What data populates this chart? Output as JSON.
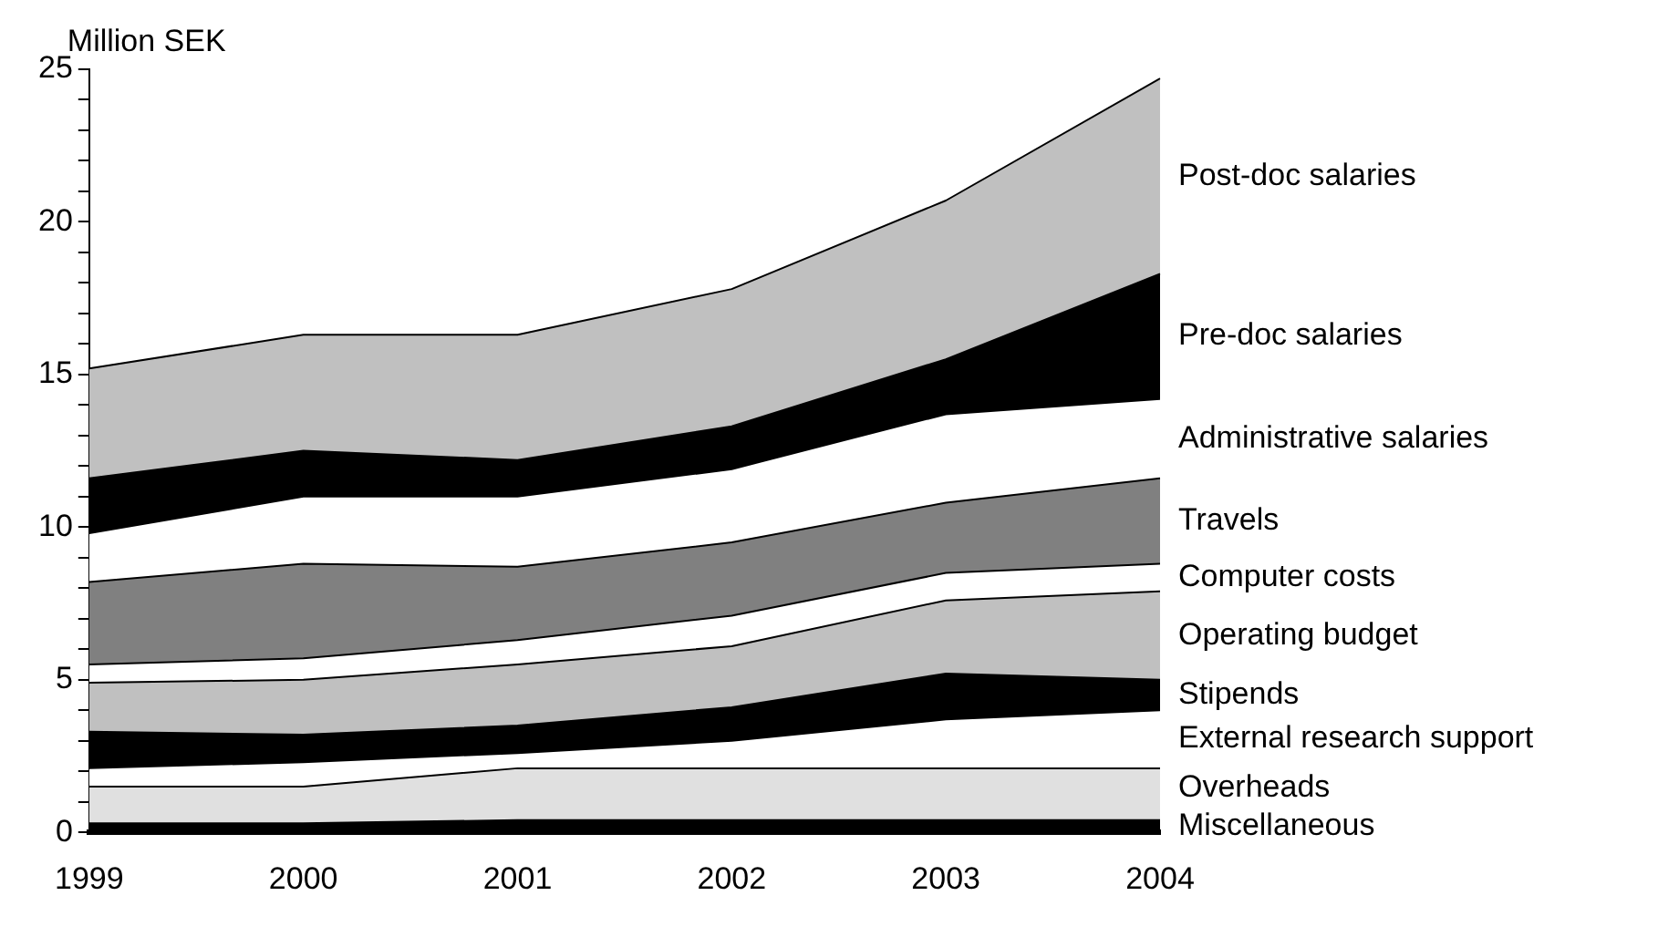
{
  "chart_data": {
    "type": "area",
    "ylabel": "Million SEK",
    "stacked": true,
    "categories": [
      "1999",
      "2000",
      "2001",
      "2002",
      "2003",
      "2004"
    ],
    "ylim": [
      0,
      25
    ],
    "yticks": [
      0,
      {
        "value": 1,
        "label": null
      },
      {
        "value": 2,
        "label": null
      },
      {
        "value": 3,
        "label": null
      },
      {
        "value": 4,
        "label": null
      },
      5,
      {
        "value": 6,
        "label": null
      },
      {
        "value": 7,
        "label": null
      },
      {
        "value": 8,
        "label": null
      },
      {
        "value": 9,
        "label": null
      },
      10,
      {
        "value": 11,
        "label": null
      },
      {
        "value": 12,
        "label": null
      },
      {
        "value": 13,
        "label": null
      },
      {
        "value": 14,
        "label": null
      },
      15,
      {
        "value": 16,
        "label": null
      },
      {
        "value": 17,
        "label": null
      },
      {
        "value": 18,
        "label": null
      },
      {
        "value": 19,
        "label": null
      },
      20,
      {
        "value": 21,
        "label": null
      },
      {
        "value": 22,
        "label": null
      },
      {
        "value": 23,
        "label": null
      },
      {
        "value": 24,
        "label": null
      },
      25
    ],
    "grid": false,
    "legend": false,
    "series": [
      {
        "name": "Miscellaneous",
        "color": "#000000",
        "values": [
          0.3,
          0.3,
          0.4,
          0.4,
          0.4,
          0.4
        ]
      },
      {
        "name": "Overheads",
        "color": "#e0e0e0",
        "values": [
          1.2,
          1.2,
          1.7,
          1.7,
          1.7,
          1.7
        ]
      },
      {
        "name": "External research support",
        "color": "#ffffff",
        "values": [
          0.6,
          0.8,
          0.5,
          0.9,
          1.6,
          1.9
        ]
      },
      {
        "name": "Stipends",
        "color": "#000000",
        "values": [
          1.2,
          0.9,
          0.9,
          1.1,
          1.5,
          1.0
        ]
      },
      {
        "name": "Operating budget",
        "color": "#c0c0c0",
        "values": [
          1.6,
          1.8,
          2.0,
          2.0,
          2.4,
          2.9
        ]
      },
      {
        "name": "Computer costs",
        "color": "#ffffff",
        "values": [
          0.6,
          0.7,
          0.8,
          1.0,
          0.9,
          0.9
        ]
      },
      {
        "name": "Travels",
        "color": "#808080",
        "values": [
          2.7,
          3.1,
          2.4,
          2.4,
          2.3,
          2.8
        ]
      },
      {
        "name": "Administrative salaries",
        "color": "#ffffff",
        "values": [
          1.6,
          2.2,
          2.3,
          2.4,
          2.9,
          2.6
        ]
      },
      {
        "name": "Pre-doc salaries",
        "color": "#000000",
        "values": [
          1.8,
          1.5,
          1.2,
          1.4,
          1.8,
          4.1
        ]
      },
      {
        "name": "Post-doc salaries",
        "color": "#c0c0c0",
        "values": [
          3.6,
          3.8,
          4.1,
          4.5,
          5.2,
          6.4
        ]
      }
    ]
  }
}
